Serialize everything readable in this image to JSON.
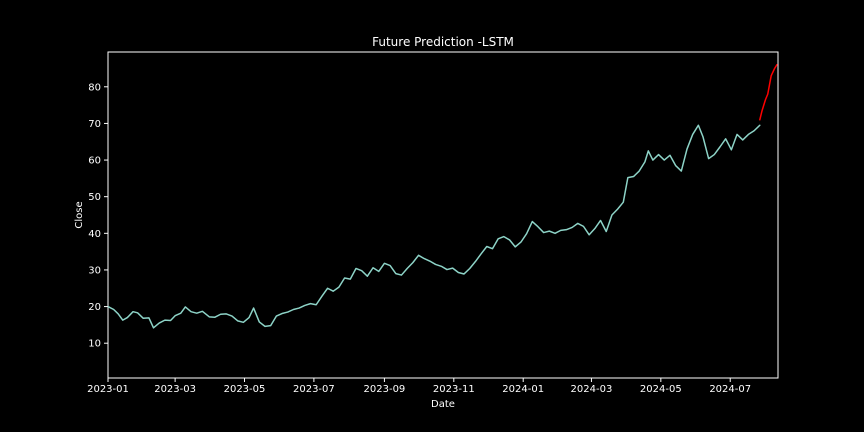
{
  "chart_data": {
    "type": "line",
    "title": "Future Prediction -LSTM",
    "xlabel": "Date",
    "ylabel": "Close",
    "xlim": [
      "2023-01-01",
      "2024-08-12"
    ],
    "ylim": [
      0.5,
      89.5
    ],
    "x_ticks": [
      "2023-01",
      "2023-03",
      "2023-05",
      "2023-07",
      "2023-09",
      "2023-11",
      "2024-01",
      "2024-03",
      "2024-05",
      "2024-07"
    ],
    "y_ticks": [
      10,
      20,
      30,
      40,
      50,
      60,
      70,
      80
    ],
    "grid": false,
    "colors": {
      "background": "#000000",
      "history": "#8dd3c7",
      "prediction": "#ff0000",
      "text": "#ffffff"
    },
    "series": [
      {
        "color": "#8dd3c7",
        "points": [
          [
            "2023-01-01",
            20.0
          ],
          [
            "2023-01-06",
            19.2
          ],
          [
            "2023-01-10",
            18.0
          ],
          [
            "2023-01-14",
            16.3
          ],
          [
            "2023-01-18",
            17.0
          ],
          [
            "2023-01-23",
            18.6
          ],
          [
            "2023-01-27",
            18.3
          ],
          [
            "2023-02-01",
            16.8
          ],
          [
            "2023-02-06",
            16.9
          ],
          [
            "2023-02-10",
            14.2
          ],
          [
            "2023-02-15",
            15.5
          ],
          [
            "2023-02-20",
            16.3
          ],
          [
            "2023-02-25",
            16.2
          ],
          [
            "2023-03-01",
            17.5
          ],
          [
            "2023-03-06",
            18.2
          ],
          [
            "2023-03-10",
            19.9
          ],
          [
            "2023-03-15",
            18.6
          ],
          [
            "2023-03-20",
            18.2
          ],
          [
            "2023-03-25",
            18.7
          ],
          [
            "2023-03-31",
            17.2
          ],
          [
            "2023-04-05",
            17.1
          ],
          [
            "2023-04-10",
            17.9
          ],
          [
            "2023-04-15",
            18.0
          ],
          [
            "2023-04-20",
            17.4
          ],
          [
            "2023-04-25",
            16.1
          ],
          [
            "2023-04-30",
            15.7
          ],
          [
            "2023-05-05",
            17.0
          ],
          [
            "2023-05-09",
            19.6
          ],
          [
            "2023-05-14",
            15.8
          ],
          [
            "2023-05-19",
            14.6
          ],
          [
            "2023-05-24",
            14.8
          ],
          [
            "2023-05-29",
            17.4
          ],
          [
            "2023-06-03",
            18.1
          ],
          [
            "2023-06-08",
            18.5
          ],
          [
            "2023-06-13",
            19.2
          ],
          [
            "2023-06-18",
            19.6
          ],
          [
            "2023-06-23",
            20.3
          ],
          [
            "2023-06-28",
            20.8
          ],
          [
            "2023-07-03",
            20.5
          ],
          [
            "2023-07-08",
            22.8
          ],
          [
            "2023-07-13",
            25.0
          ],
          [
            "2023-07-18",
            24.2
          ],
          [
            "2023-07-23",
            25.3
          ],
          [
            "2023-07-28",
            27.8
          ],
          [
            "2023-08-02",
            27.5
          ],
          [
            "2023-08-07",
            30.4
          ],
          [
            "2023-08-12",
            29.8
          ],
          [
            "2023-08-17",
            28.3
          ],
          [
            "2023-08-22",
            30.6
          ],
          [
            "2023-08-27",
            29.6
          ],
          [
            "2023-09-01",
            31.8
          ],
          [
            "2023-09-06",
            31.2
          ],
          [
            "2023-09-11",
            29.0
          ],
          [
            "2023-09-16",
            28.6
          ],
          [
            "2023-09-21",
            30.4
          ],
          [
            "2023-09-26",
            32.0
          ],
          [
            "2023-10-01",
            34.0
          ],
          [
            "2023-10-06",
            33.1
          ],
          [
            "2023-10-11",
            32.4
          ],
          [
            "2023-10-16",
            31.5
          ],
          [
            "2023-10-21",
            31.0
          ],
          [
            "2023-10-26",
            30.1
          ],
          [
            "2023-10-31",
            30.5
          ],
          [
            "2023-11-05",
            29.3
          ],
          [
            "2023-11-10",
            28.9
          ],
          [
            "2023-11-15",
            30.4
          ],
          [
            "2023-11-20",
            32.3
          ],
          [
            "2023-11-25",
            34.4
          ],
          [
            "2023-11-30",
            36.4
          ],
          [
            "2023-12-05",
            35.8
          ],
          [
            "2023-12-10",
            38.5
          ],
          [
            "2023-12-15",
            39.1
          ],
          [
            "2023-12-20",
            38.2
          ],
          [
            "2023-12-25",
            36.3
          ],
          [
            "2023-12-30",
            37.6
          ],
          [
            "2024-01-04",
            39.9
          ],
          [
            "2024-01-09",
            43.2
          ],
          [
            "2024-01-14",
            41.8
          ],
          [
            "2024-01-19",
            40.2
          ],
          [
            "2024-01-24",
            40.6
          ],
          [
            "2024-01-29",
            40.0
          ],
          [
            "2024-02-03",
            40.8
          ],
          [
            "2024-02-08",
            41.0
          ],
          [
            "2024-02-13",
            41.6
          ],
          [
            "2024-02-18",
            42.7
          ],
          [
            "2024-02-23",
            41.9
          ],
          [
            "2024-02-28",
            39.6
          ],
          [
            "2024-03-04",
            41.3
          ],
          [
            "2024-03-09",
            43.5
          ],
          [
            "2024-03-14",
            40.5
          ],
          [
            "2024-03-19",
            45.0
          ],
          [
            "2024-03-24",
            46.6
          ],
          [
            "2024-03-29",
            48.5
          ],
          [
            "2024-04-02",
            55.2
          ],
          [
            "2024-04-07",
            55.5
          ],
          [
            "2024-04-12",
            57.0
          ],
          [
            "2024-04-17",
            59.5
          ],
          [
            "2024-04-20",
            62.5
          ],
          [
            "2024-04-24",
            60.0
          ],
          [
            "2024-04-29",
            61.5
          ],
          [
            "2024-05-04",
            60.0
          ],
          [
            "2024-05-09",
            61.3
          ],
          [
            "2024-05-14",
            58.5
          ],
          [
            "2024-05-19",
            57.0
          ],
          [
            "2024-05-24",
            63.0
          ],
          [
            "2024-05-29",
            67.0
          ],
          [
            "2024-06-03",
            69.5
          ],
          [
            "2024-06-07",
            66.4
          ],
          [
            "2024-06-12",
            60.4
          ],
          [
            "2024-06-17",
            61.5
          ],
          [
            "2024-06-22",
            63.6
          ],
          [
            "2024-06-27",
            65.8
          ],
          [
            "2024-07-02",
            62.8
          ],
          [
            "2024-07-07",
            67.0
          ],
          [
            "2024-07-12",
            65.5
          ],
          [
            "2024-07-17",
            67.0
          ],
          [
            "2024-07-22",
            68.0
          ],
          [
            "2024-07-27",
            69.5
          ]
        ]
      },
      {
        "color": "#ff0000",
        "points": [
          [
            "2024-07-27",
            71.0
          ],
          [
            "2024-07-29",
            73.5
          ],
          [
            "2024-08-01",
            76.5
          ],
          [
            "2024-08-03",
            78.0
          ],
          [
            "2024-08-06",
            83.0
          ],
          [
            "2024-08-09",
            85.0
          ],
          [
            "2024-08-11",
            86.0
          ]
        ]
      }
    ]
  }
}
